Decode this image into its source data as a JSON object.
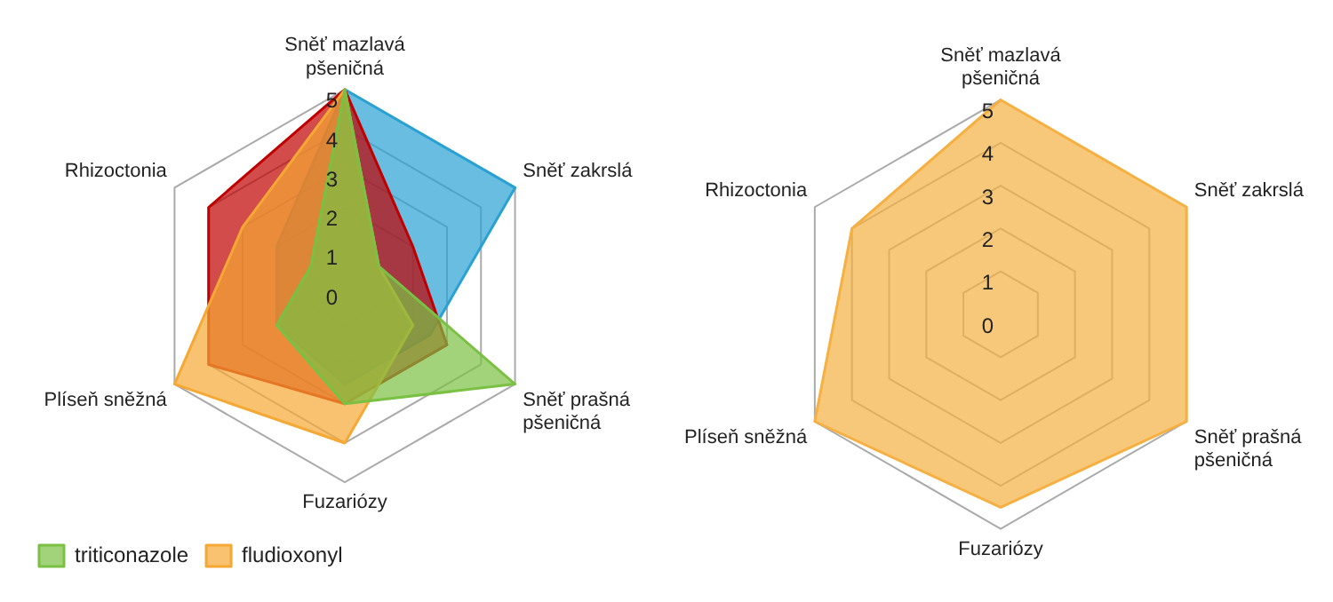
{
  "chart_data": [
    {
      "type": "radar",
      "categories": [
        "Sněť mazlavá pšeničná",
        "Sněť zakrslá",
        "Sněť prašná pšeničná",
        "Fuzariózy",
        "Plíseň sněžná",
        "Rhizoctonia"
      ],
      "series": [
        {
          "name": "triticonazole",
          "color": "#7ac143",
          "values": [
            5,
            1,
            5,
            3,
            2,
            1
          ]
        },
        {
          "name": "fludioxonyl",
          "color": "#f5a833",
          "values": [
            5,
            1,
            2,
            4,
            5,
            3
          ]
        },
        {
          "color": "#c00000",
          "values": [
            5,
            2,
            3,
            3,
            4,
            4
          ]
        },
        {
          "color": "#2aa1d3",
          "values": [
            5,
            5,
            2.5,
            2.5,
            2,
            2
          ]
        }
      ],
      "ylim": [
        0,
        5
      ],
      "yticks": [
        0,
        1,
        2,
        3,
        4,
        5
      ],
      "grid": true,
      "legend": "bottom left"
    },
    {
      "type": "radar",
      "categories": [
        "Sněť mazlavá pšeničná",
        "Sněť zakrslá",
        "Sněť prašná pšeničná",
        "Fuzariózy",
        "Plíseň sněžná",
        "Rhizoctonia"
      ],
      "series": [
        {
          "color": "#f5b041",
          "values": [
            5,
            5,
            5,
            4.5,
            5,
            4
          ]
        }
      ],
      "ylim": [
        0,
        5
      ],
      "yticks": [
        0,
        1,
        2,
        3,
        4,
        5
      ],
      "grid": true
    }
  ]
}
